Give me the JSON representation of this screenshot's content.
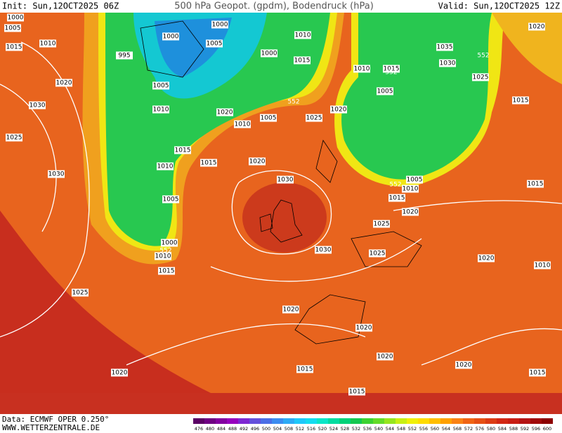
{
  "header": {
    "init": "Init: Sun,12OCT2025 06Z",
    "title": "500 hPa Geopot. (gpdm), Bodendruck (hPa)",
    "valid": "Valid: Sun,12OCT2025 12Z"
  },
  "footer": {
    "source": "Data: ECMWF OPER 0.250°",
    "site": "WWW.WETTERZENTRALE.DE"
  },
  "colorbar": {
    "ticks": [
      476,
      480,
      484,
      488,
      492,
      496,
      500,
      504,
      508,
      512,
      516,
      520,
      524,
      528,
      532,
      536,
      540,
      544,
      548,
      552,
      556,
      560,
      564,
      568,
      572,
      576,
      580,
      584,
      588,
      592,
      596,
      600
    ],
    "colors": [
      "#5a0064",
      "#6e0082",
      "#8200a0",
      "#9600be",
      "#7d28d2",
      "#6450dc",
      "#4b6ee6",
      "#3c8cf0",
      "#2daaf5",
      "#1ec8fa",
      "#14dcf0",
      "#0ae6c8",
      "#00dca0",
      "#00d278",
      "#14c850",
      "#3cd232",
      "#64dc28",
      "#96e61e",
      "#c8f014",
      "#f0f00a",
      "#ffdc00",
      "#ffbe00",
      "#ffa000",
      "#fa8214",
      "#f06414",
      "#e65014",
      "#dc3c14",
      "#d22814",
      "#c81e14",
      "#b41414",
      "#a00a0a",
      "#8c0000"
    ]
  },
  "map": {
    "isobar_labels": [
      "1000",
      "1005",
      "1015",
      "1010",
      "995",
      "1000",
      "1000",
      "1010",
      "1005",
      "1000",
      "1015",
      "1035",
      "1030",
      "1020",
      "1025",
      "1010",
      "1015",
      "1005",
      "1015",
      "1020",
      "1005",
      "1030",
      "1010",
      "1020",
      "1010",
      "1005",
      "1025",
      "1020",
      "1025",
      "1015",
      "1015",
      "1020",
      "1010",
      "1030",
      "1030",
      "1005",
      "1010",
      "1015",
      "1015",
      "1020",
      "1025",
      "1005",
      "1000",
      "1010",
      "1030",
      "1025",
      "1020",
      "1010",
      "1015",
      "1025",
      "1020",
      "1020",
      "1020",
      "1020",
      "1015",
      "1020",
      "1015",
      "1015"
    ],
    "geopotential_labels": [
      "552",
      "552",
      "552",
      "552",
      "552"
    ]
  }
}
